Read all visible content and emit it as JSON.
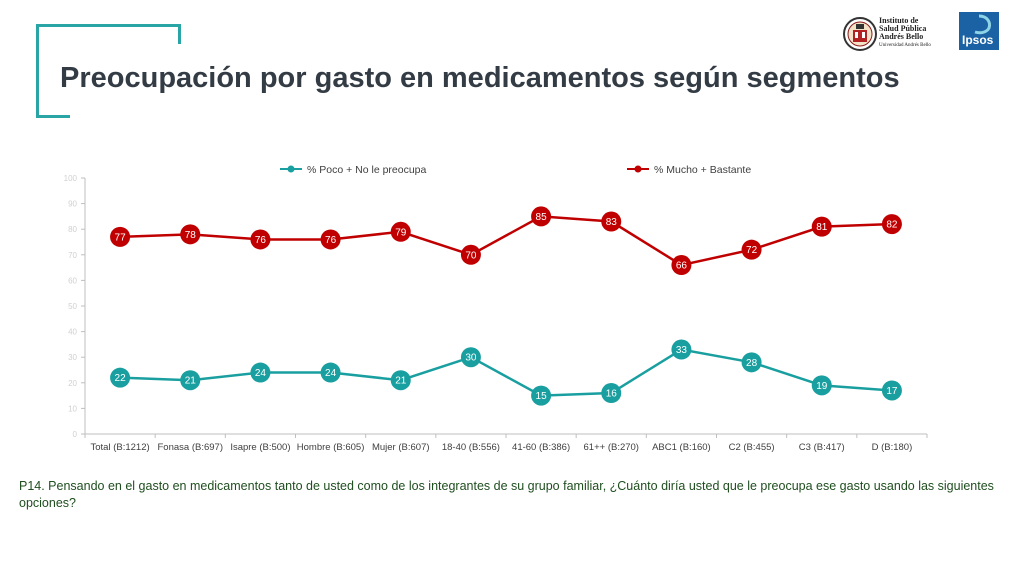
{
  "header": {
    "title": "Preocupación por gasto en medicamentos según segmentos",
    "logos": {
      "iasb_lines": [
        "Instituto de",
        "Salud Pública",
        "Andrés Bello"
      ],
      "iasb_sub": "Universidad Andrés Bello",
      "ipsos": "Ipsos"
    },
    "accent_color": "#2aa5a5"
  },
  "chart_data": {
    "type": "line",
    "categories": [
      "Total (B:1212)",
      "Fonasa (B:697)",
      "Isapre (B:500)",
      "Hombre (B:605)",
      "Mujer (B:607)",
      "18-40 (B:556)",
      "41-60 (B:386)",
      "61++ (B:270)",
      "ABC1 (B:160)",
      "C2 (B:455)",
      "C3 (B:417)",
      "D (B:180)"
    ],
    "series": [
      {
        "name": "% Poco + No le preocupa",
        "color": "#1a9fa0",
        "values": [
          22,
          21,
          24,
          24,
          21,
          30,
          15,
          16,
          33,
          28,
          19,
          17
        ]
      },
      {
        "name": "% Mucho + Bastante",
        "color": "#c00000",
        "values": [
          77,
          78,
          76,
          76,
          79,
          70,
          85,
          83,
          66,
          72,
          81,
          82
        ]
      }
    ],
    "ylim": [
      0,
      100
    ],
    "yticks": [
      "0",
      "10",
      "20",
      "30",
      "40",
      "50",
      "60",
      "70",
      "80",
      "90",
      "100"
    ],
    "legend": "top",
    "grid": false
  },
  "footnote": "P14. Pensando en el gasto en medicamentos tanto de usted como de los integrantes de su grupo familiar, ¿Cuánto diría usted que le preocupa ese gasto usando las siguientes opciones?"
}
